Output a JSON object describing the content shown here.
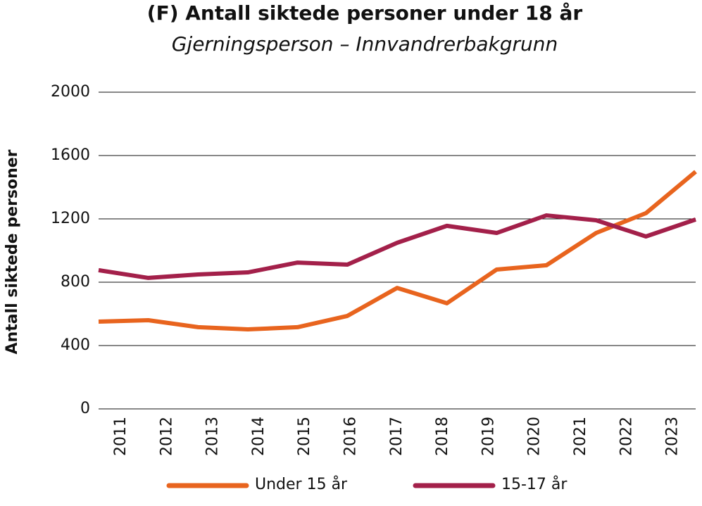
{
  "chart_data": {
    "type": "line",
    "title": "(F) Antall siktede personer under 18 år",
    "subtitle": "Gjerningsperson – Innvandrerbakgrunn",
    "y_label": "Antall siktede personer",
    "categories": [
      "2011",
      "2012",
      "2013",
      "2014",
      "2015",
      "2016",
      "2017",
      "2018",
      "2019",
      "2020",
      "2021",
      "2022",
      "2023"
    ],
    "series": [
      {
        "name": "Under 15 år",
        "color": "#e8641e",
        "values": [
          551,
          560,
          516,
          502,
          516,
          587,
          764,
          667,
          880,
          907,
          1111,
          1236,
          1498
        ]
      },
      {
        "name": "15-17 år",
        "color": "#a3204a",
        "values": [
          876,
          827,
          849,
          862,
          924,
          911,
          1049,
          1156,
          1111,
          1222,
          1191,
          1089,
          1196
        ]
      }
    ],
    "ylim": [
      0,
      2000
    ],
    "yticks": [
      0,
      400,
      800,
      1200,
      1600,
      2000
    ],
    "grid": true
  }
}
